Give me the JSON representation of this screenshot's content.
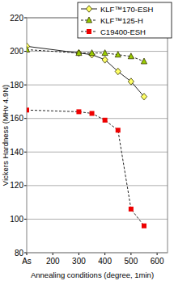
{
  "chart_data": {
    "type": "line",
    "x_label": "Annealing conditions (degree, 1min)",
    "y_label": "Vickers Hardness (MHv 4.9N)",
    "x": [
      100,
      300,
      350,
      400,
      450,
      500,
      550
    ],
    "xlim": [
      100,
      640
    ],
    "xticks": [
      {
        "value": 100,
        "label": "As"
      },
      200,
      300,
      400,
      500,
      600
    ],
    "ylim": [
      80,
      220
    ],
    "yticks": [
      80,
      100,
      120,
      140,
      160,
      180,
      200,
      220
    ],
    "grid": true,
    "legend": "top-right",
    "series": [
      {
        "name": "KLF™170-ESH",
        "color": "#ffff66",
        "marker": "diamond",
        "line_style": "solid",
        "values": [
          203,
          199,
          198,
          195,
          188,
          182,
          173
        ]
      },
      {
        "name": "KLF™125-H",
        "color": "#99cc00",
        "marker": "triangle",
        "line_style": "dashed",
        "values": [
          201,
          199,
          199,
          199,
          198,
          197,
          194
        ]
      },
      {
        "name": "C19400-ESH",
        "color": "#ee0000",
        "marker": "square",
        "line_style": "dashed",
        "values": [
          165,
          164,
          163,
          159,
          153,
          106,
          96
        ]
      }
    ]
  }
}
